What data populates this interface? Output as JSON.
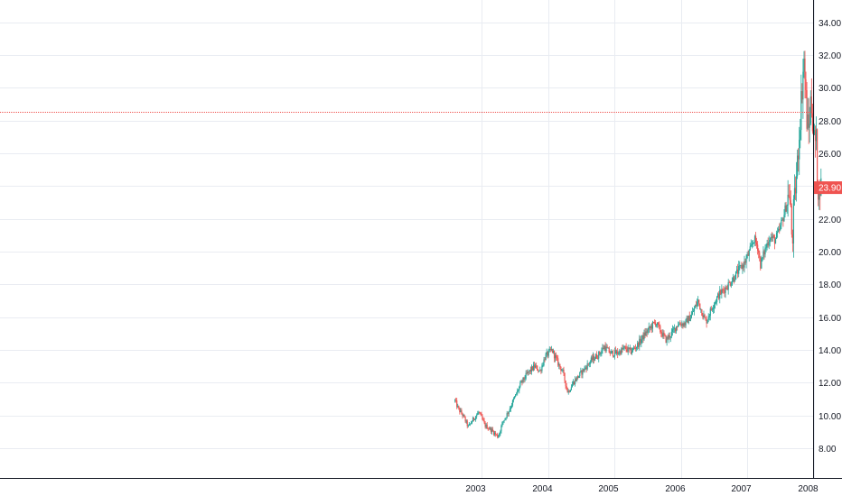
{
  "chart_data": {
    "type": "candlestick",
    "title": "",
    "xlabel": "",
    "ylabel": "",
    "ylim": [
      7.0,
      35.0
    ],
    "y_ticks": [
      8.0,
      10.0,
      12.0,
      14.0,
      16.0,
      18.0,
      20.0,
      22.0,
      24.0,
      26.0,
      28.0,
      30.0,
      32.0,
      34.0
    ],
    "y_tick_labels": [
      "8.00",
      "10.00",
      "12.00",
      "14.00",
      "16.00",
      "18.00",
      "20.00",
      "22.00",
      "24.00",
      "26.00",
      "28.00",
      "30.00",
      "32.00",
      "34.00"
    ],
    "x_tick_labels": [
      "2003",
      "2004",
      "2005",
      "2006",
      "2007",
      "2008"
    ],
    "x_ticks_year": [
      2003.0,
      2004.0,
      2005.0,
      2006.0,
      2007.0,
      2008.0
    ],
    "xlim_year": [
      1995.72,
      2008.15
    ],
    "grid": true,
    "series": [
      {
        "price_path": [
          [
            2002.6,
            10.9
          ],
          [
            2002.65,
            10.4
          ],
          [
            2002.72,
            10.0
          ],
          [
            2002.8,
            9.3
          ],
          [
            2002.88,
            9.8
          ],
          [
            2002.96,
            10.2
          ],
          [
            2003.05,
            9.4
          ],
          [
            2003.15,
            9.1
          ],
          [
            2003.25,
            8.7
          ],
          [
            2003.32,
            9.6
          ],
          [
            2003.4,
            10.2
          ],
          [
            2003.5,
            11.1
          ],
          [
            2003.6,
            12.0
          ],
          [
            2003.7,
            12.6
          ],
          [
            2003.8,
            13.0
          ],
          [
            2003.88,
            12.7
          ],
          [
            2003.96,
            13.6
          ],
          [
            2004.06,
            14.0
          ],
          [
            2004.15,
            13.2
          ],
          [
            2004.22,
            12.7
          ],
          [
            2004.3,
            11.4
          ],
          [
            2004.38,
            12.0
          ],
          [
            2004.46,
            12.4
          ],
          [
            2004.56,
            12.9
          ],
          [
            2004.66,
            13.4
          ],
          [
            2004.76,
            13.7
          ],
          [
            2004.85,
            14.2
          ],
          [
            2004.94,
            13.8
          ],
          [
            2005.05,
            13.8
          ],
          [
            2005.15,
            14.1
          ],
          [
            2005.25,
            13.9
          ],
          [
            2005.35,
            14.3
          ],
          [
            2005.45,
            14.9
          ],
          [
            2005.55,
            15.4
          ],
          [
            2005.62,
            15.7
          ],
          [
            2005.7,
            15.1
          ],
          [
            2005.78,
            14.6
          ],
          [
            2005.86,
            15.0
          ],
          [
            2005.96,
            15.6
          ],
          [
            2006.06,
            15.6
          ],
          [
            2006.16,
            16.1
          ],
          [
            2006.26,
            17.0
          ],
          [
            2006.32,
            16.3
          ],
          [
            2006.38,
            15.7
          ],
          [
            2006.48,
            16.7
          ],
          [
            2006.58,
            17.4
          ],
          [
            2006.68,
            17.8
          ],
          [
            2006.78,
            18.3
          ],
          [
            2006.88,
            18.9
          ],
          [
            2006.96,
            19.3
          ],
          [
            2007.05,
            20.1
          ],
          [
            2007.1,
            20.8
          ],
          [
            2007.16,
            20.3
          ],
          [
            2007.2,
            19.2
          ],
          [
            2007.26,
            20.0
          ],
          [
            2007.34,
            20.9
          ],
          [
            2007.42,
            20.7
          ],
          [
            2007.48,
            21.2
          ],
          [
            2007.55,
            22.2
          ],
          [
            2007.6,
            23.0
          ],
          [
            2007.63,
            23.7
          ],
          [
            2007.66,
            22.2
          ],
          [
            2007.68,
            20.2
          ],
          [
            2007.7,
            22.6
          ],
          [
            2007.74,
            24.4
          ],
          [
            2007.78,
            26.8
          ],
          [
            2007.81,
            29.0
          ],
          [
            2007.84,
            30.8
          ],
          [
            2007.85,
            32.1
          ],
          [
            2007.87,
            30.6
          ],
          [
            2007.9,
            28.0
          ],
          [
            2007.93,
            27.4
          ],
          [
            2007.96,
            29.4
          ],
          [
            2007.99,
            27.8
          ],
          [
            2008.02,
            26.6
          ],
          [
            2008.04,
            26.9
          ],
          [
            2008.06,
            24.4
          ],
          [
            2008.08,
            23.2
          ],
          [
            2008.1,
            24.2
          ],
          [
            2008.12,
            23.9
          ]
        ]
      }
    ],
    "reference_line_price": 28.55,
    "last_price": 23.9,
    "last_price_label": "23.90",
    "colors": {
      "up": "#26a69a",
      "down": "#ef5350",
      "reference_line": "#ef5350",
      "price_tag": "#ef5350",
      "grid": "#e9ecf2",
      "axis": "#131722"
    }
  }
}
